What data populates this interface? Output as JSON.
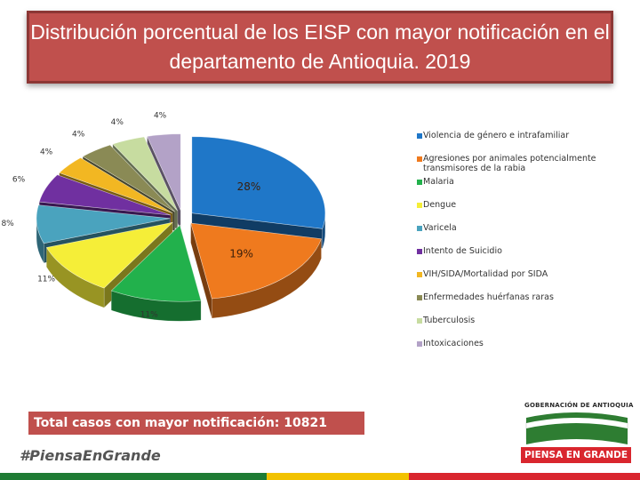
{
  "title": "Distribución porcentual de los EISP con mayor notificación en el departamento de Antioquia. 2019",
  "total_label": "Total casos con mayor notificación: 10821",
  "hashtag": "#PiensaEnGrande",
  "logo": {
    "name": "GOBERNACIÓN DE ANTIOQUIA",
    "slogan": "PIENSA EN GRANDE",
    "colors": [
      "#2e7d32",
      "#ffffff",
      "#d9262e"
    ]
  },
  "chart_data": {
    "type": "pie",
    "style": "3d-exploded",
    "title": "",
    "legend_position": "right",
    "slices": [
      {
        "name": "Violencia de género e intrafamiliar",
        "label": "28%",
        "value": 28,
        "color": "#1f77c8"
      },
      {
        "name": "Agresiones por animales potencialmente transmisores de la rabia",
        "label": "19%",
        "value": 19,
        "color": "#ef7a1e"
      },
      {
        "name": "Malaria",
        "label": "11%",
        "value": 11,
        "color": "#22b14c"
      },
      {
        "name": "Dengue",
        "label": "11%",
        "value": 11,
        "color": "#f5ee38"
      },
      {
        "name": "Varicela",
        "label": "8%",
        "value": 8,
        "color": "#4aa3be"
      },
      {
        "name": "Intento de Suicidio",
        "label": "6%",
        "value": 6,
        "color": "#7030a0"
      },
      {
        "name": "VIH/SIDA/Mortalidad por SIDA",
        "label": "4%",
        "value": 4,
        "color": "#f2b722"
      },
      {
        "name": "Enfermedades huérfanas raras",
        "label": "4%",
        "value": 4,
        "color": "#8a8a55"
      },
      {
        "name": "Tuberculosis",
        "label": "4%",
        "value": 4,
        "color": "#c7dca0"
      },
      {
        "name": "Intoxicaciones",
        "label": "4%",
        "value": 4,
        "color": "#b3a2c7"
      }
    ]
  }
}
